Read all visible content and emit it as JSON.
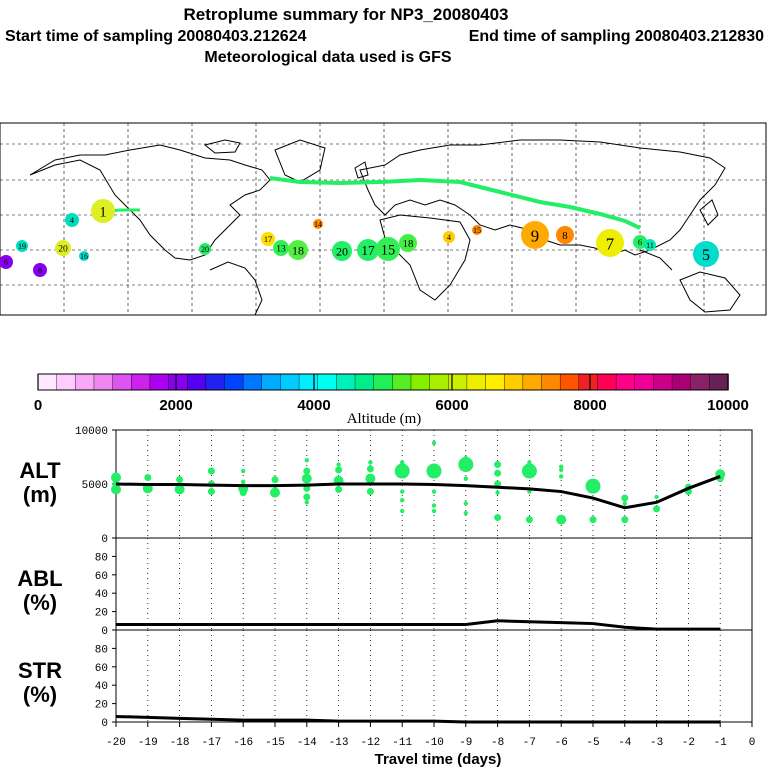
{
  "header": {
    "line1": "Retroplume summary for NP3_20080403",
    "line2_start": "Start time of sampling 20080403.212624",
    "line2_end": "End time of sampling 20080403.212830",
    "line3": "Meteorological data used is GFS"
  },
  "colors": {
    "plume_green": "#22ee66",
    "line_black": "#000000",
    "colorbar": [
      "#ffe8ff",
      "#ffccff",
      "#f7a8f7",
      "#ee88ee",
      "#dd55ee",
      "#cc22ee",
      "#aa00ee",
      "#8800ee",
      "#5500ee",
      "#2222ee",
      "#0044ff",
      "#0077ff",
      "#00aaff",
      "#00ccff",
      "#00eeff",
      "#00ffee",
      "#00f0bb",
      "#00ee88",
      "#22ee55",
      "#55ee22",
      "#88ee00",
      "#aaee00",
      "#ccee00",
      "#eeee00",
      "#ffee00",
      "#ffcc00",
      "#ffaa00",
      "#ff8800",
      "#ff5500",
      "#ee2222",
      "#ff0055",
      "#ff0088",
      "#ee0099",
      "#cc0088",
      "#aa0077",
      "#882266",
      "#662255"
    ]
  },
  "colorbar": {
    "tick_labels": [
      "0",
      "2000",
      "4000",
      "6000",
      "8000",
      "10000"
    ],
    "title": "Altitude (m)"
  },
  "map": {
    "labels": [
      {
        "text": "1",
        "color": "#ddee22"
      },
      {
        "text": "4",
        "color": "#00ddbb"
      },
      {
        "text": "20",
        "color": "#ddee22"
      },
      {
        "text": "19",
        "color": "#00ddbb"
      },
      {
        "text": "20",
        "color": "#22ee66"
      },
      {
        "text": "17",
        "color": "#ffdd00"
      },
      {
        "text": "13",
        "color": "#33ee55"
      },
      {
        "text": "18",
        "color": "#55ee44"
      },
      {
        "text": "14",
        "color": "#ff8800"
      },
      {
        "text": "20",
        "color": "#22ee66"
      },
      {
        "text": "17",
        "color": "#22ee66"
      },
      {
        "text": "15",
        "color": "#33ee55"
      },
      {
        "text": "18",
        "color": "#44ee44"
      },
      {
        "text": "4",
        "color": "#ffcc00"
      },
      {
        "text": "9",
        "color": "#ffaa00"
      },
      {
        "text": "8",
        "color": "#ff8800"
      },
      {
        "text": "7",
        "color": "#eeee00"
      },
      {
        "text": "6",
        "color": "#22ee66"
      },
      {
        "text": "5",
        "color": "#00ddcc"
      },
      {
        "text": "6",
        "color": "#8800ee"
      },
      {
        "text": "8",
        "color": "#8800ee"
      },
      {
        "text": "16",
        "color": "#00ddcc"
      },
      {
        "text": "15",
        "color": "#ff8800"
      },
      {
        "text": "11",
        "color": "#00eeaa"
      }
    ]
  },
  "chart_data": [
    {
      "type": "line",
      "panel": "ALT",
      "ylabel": "ALT\n(m)",
      "ylabel_line1": "ALT",
      "ylabel_line2": "(m)",
      "ylim": [
        0,
        10000
      ],
      "ytick_labels": [
        "10000",
        "5000",
        "0"
      ],
      "yticks": [
        10000,
        5000,
        0
      ],
      "x": [
        -20,
        -19,
        -18,
        -17,
        -16,
        -15,
        -14,
        -13,
        -12,
        -11,
        -10,
        -9,
        -8,
        -7,
        -6,
        -5,
        -4,
        -3,
        -2,
        -1
      ],
      "series": [
        {
          "name": "mean altitude",
          "values": [
            5000,
            4950,
            4950,
            4900,
            4850,
            4850,
            4900,
            5000,
            5000,
            5000,
            4950,
            4850,
            4700,
            4550,
            4300,
            3700,
            2800,
            3300,
            4600,
            5700
          ]
        }
      ],
      "clusters": [
        {
          "x": -20,
          "points": [
            [
              5600,
              3
            ],
            [
              4500,
              3
            ],
            [
              5000,
              2
            ]
          ]
        },
        {
          "x": -19,
          "points": [
            [
              5600,
              2
            ],
            [
              4600,
              3
            ]
          ]
        },
        {
          "x": -18,
          "points": [
            [
              5400,
              2
            ],
            [
              4500,
              3
            ]
          ]
        },
        {
          "x": -17,
          "points": [
            [
              6200,
              2
            ],
            [
              5000,
              2
            ],
            [
              4300,
              2
            ]
          ]
        },
        {
          "x": -16,
          "points": [
            [
              6200,
              1
            ],
            [
              5200,
              1
            ],
            [
              4600,
              3
            ],
            [
              4200,
              2
            ]
          ]
        },
        {
          "x": -15,
          "points": [
            [
              5400,
              2
            ],
            [
              4800,
              1
            ],
            [
              4200,
              3
            ]
          ]
        },
        {
          "x": -14,
          "points": [
            [
              7200,
              1
            ],
            [
              6200,
              2
            ],
            [
              5500,
              3
            ],
            [
              4600,
              2
            ],
            [
              3800,
              2
            ],
            [
              3300,
              1
            ]
          ]
        },
        {
          "x": -13,
          "points": [
            [
              6800,
              1
            ],
            [
              6300,
              2
            ],
            [
              5300,
              3
            ],
            [
              4500,
              2
            ]
          ]
        },
        {
          "x": -12,
          "points": [
            [
              7000,
              1
            ],
            [
              6400,
              2
            ],
            [
              5500,
              3
            ],
            [
              4300,
              2
            ]
          ]
        },
        {
          "x": -11,
          "points": [
            [
              7000,
              1
            ],
            [
              6200,
              4
            ],
            [
              4300,
              1
            ],
            [
              3500,
              1
            ],
            [
              2500,
              1
            ]
          ]
        },
        {
          "x": -10,
          "points": [
            [
              8800,
              1
            ],
            [
              6200,
              4
            ],
            [
              4300,
              1
            ],
            [
              3000,
              1
            ],
            [
              2500,
              1
            ]
          ]
        },
        {
          "x": -9,
          "points": [
            [
              7400,
              1
            ],
            [
              6800,
              4
            ],
            [
              5500,
              1
            ],
            [
              3200,
              1
            ],
            [
              2300,
              1
            ]
          ]
        },
        {
          "x": -8,
          "points": [
            [
              6800,
              2
            ],
            [
              6000,
              2
            ],
            [
              5000,
              2
            ],
            [
              4200,
              1
            ],
            [
              1900,
              2
            ]
          ]
        },
        {
          "x": -7,
          "points": [
            [
              7000,
              1
            ],
            [
              6200,
              4
            ],
            [
              4300,
              1
            ],
            [
              1700,
              2
            ]
          ]
        },
        {
          "x": -6,
          "points": [
            [
              6600,
              1
            ],
            [
              6300,
              1
            ],
            [
              5700,
              1
            ],
            [
              1700,
              3
            ]
          ]
        },
        {
          "x": -5,
          "points": [
            [
              4800,
              4
            ],
            [
              1700,
              2
            ]
          ]
        },
        {
          "x": -4,
          "points": [
            [
              3700,
              2
            ],
            [
              3200,
              1
            ],
            [
              1700,
              2
            ]
          ]
        },
        {
          "x": -3,
          "points": [
            [
              3800,
              1
            ],
            [
              2700,
              2
            ]
          ]
        },
        {
          "x": -2,
          "points": [
            [
              4700,
              2
            ],
            [
              4300,
              2
            ]
          ]
        },
        {
          "x": -1,
          "points": [
            [
              5900,
              3
            ],
            [
              5500,
              2
            ]
          ]
        }
      ]
    },
    {
      "type": "line",
      "panel": "ABL",
      "ylabel": "ABL\n(%)",
      "ylabel_line1": "ABL",
      "ylabel_line2": "(%)",
      "ylim": [
        0,
        100
      ],
      "ytick_labels": [
        "80",
        "60",
        "40",
        "20",
        "0"
      ],
      "yticks": [
        80,
        60,
        40,
        20,
        0
      ],
      "x": [
        -20,
        -19,
        -18,
        -17,
        -16,
        -15,
        -14,
        -13,
        -12,
        -11,
        -10,
        -9,
        -8,
        -7,
        -6,
        -5,
        -4,
        -3,
        -2,
        -1
      ],
      "series": [
        {
          "name": "ABL fraction",
          "values": [
            6,
            6,
            6,
            6,
            6,
            6,
            6,
            6,
            6,
            6,
            6,
            6,
            10,
            9,
            8,
            7,
            3,
            1,
            1,
            1
          ]
        }
      ]
    },
    {
      "type": "line",
      "panel": "STR",
      "ylabel": "STR\n(%)",
      "ylabel_line1": "STR",
      "ylabel_line2": "(%)",
      "ylim": [
        0,
        100
      ],
      "ytick_labels": [
        "80",
        "60",
        "40",
        "20",
        "0"
      ],
      "yticks": [
        80,
        60,
        40,
        20,
        0
      ],
      "x": [
        -20,
        -19,
        -18,
        -17,
        -16,
        -15,
        -14,
        -13,
        -12,
        -11,
        -10,
        -9,
        -8,
        -7,
        -6,
        -5,
        -4,
        -3,
        -2,
        -1
      ],
      "series": [
        {
          "name": "stratospheric fraction",
          "values": [
            6,
            5,
            4,
            3,
            2,
            2,
            2,
            1,
            1,
            1,
            1,
            0,
            0,
            0,
            0,
            0,
            0,
            0,
            0,
            0
          ]
        }
      ]
    }
  ],
  "xaxis": {
    "label": "Travel time (days)",
    "tick_labels": [
      "-20",
      "-19",
      "-18",
      "-17",
      "-16",
      "-15",
      "-14",
      "-13",
      "-12",
      "-11",
      "-10",
      "-9",
      "-8",
      "-7",
      "-6",
      "-5",
      "-4",
      "-3",
      "-2",
      "-1",
      "0"
    ],
    "ticks": [
      -20,
      -19,
      -18,
      -17,
      -16,
      -15,
      -14,
      -13,
      -12,
      -11,
      -10,
      -9,
      -8,
      -7,
      -6,
      -5,
      -4,
      -3,
      -2,
      -1,
      0
    ]
  }
}
